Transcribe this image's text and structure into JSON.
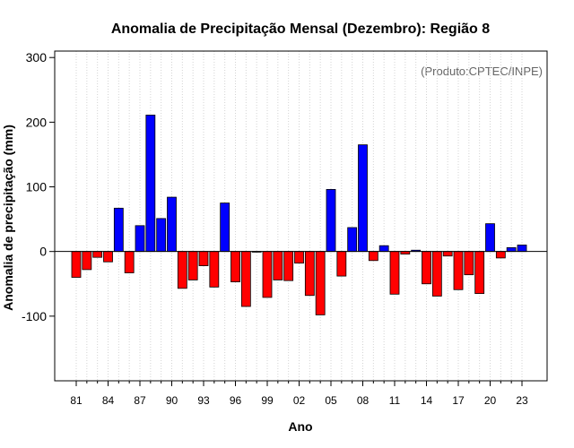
{
  "chart_data": {
    "type": "bar",
    "title": "Anomalia de Precipitação Mensal (Dezembro): Região 8",
    "xlabel": "Ano",
    "ylabel": "Anomalia de precipitação (mm)",
    "credit": "(Produto:CPTEC/INPE)",
    "ylim": [
      -200,
      310
    ],
    "yticks": [
      -100,
      0,
      100,
      200,
      300
    ],
    "ytick_labels": [
      "-100",
      "0",
      "100",
      "200",
      "300"
    ],
    "xtick_labels": [
      "81",
      "84",
      "87",
      "90",
      "93",
      "96",
      "99",
      "02",
      "05",
      "08",
      "11",
      "14",
      "17",
      "20",
      "23"
    ],
    "xtick_step": 3,
    "grid": "vertical dotted",
    "colors": {
      "positive": "#0000ff",
      "negative": "#ff0000",
      "grid": "#d3d3d3",
      "frame": "#000000"
    },
    "categories": [
      "1981",
      "1982",
      "1983",
      "1984",
      "1985",
      "1986",
      "1987",
      "1988",
      "1989",
      "1990",
      "1991",
      "1992",
      "1993",
      "1994",
      "1995",
      "1996",
      "1997",
      "1998",
      "1999",
      "2000",
      "2001",
      "2002",
      "2003",
      "2004",
      "2005",
      "2006",
      "2007",
      "2008",
      "2009",
      "2010",
      "2011",
      "2012",
      "2013",
      "2014",
      "2015",
      "2016",
      "2017",
      "2018",
      "2019",
      "2020",
      "2021",
      "2022",
      "2023"
    ],
    "values": [
      -40,
      -28,
      -9,
      -16,
      67,
      -33,
      40,
      211,
      51,
      84,
      -57,
      -44,
      -22,
      -55,
      75,
      -47,
      -85,
      -1,
      -71,
      -44,
      -45,
      -18,
      -68,
      -98,
      96,
      -38,
      37,
      165,
      -14,
      9,
      -66,
      -4,
      2,
      -50,
      -69,
      -7,
      -59,
      -36,
      -65,
      43,
      -10,
      6,
      10
    ]
  }
}
